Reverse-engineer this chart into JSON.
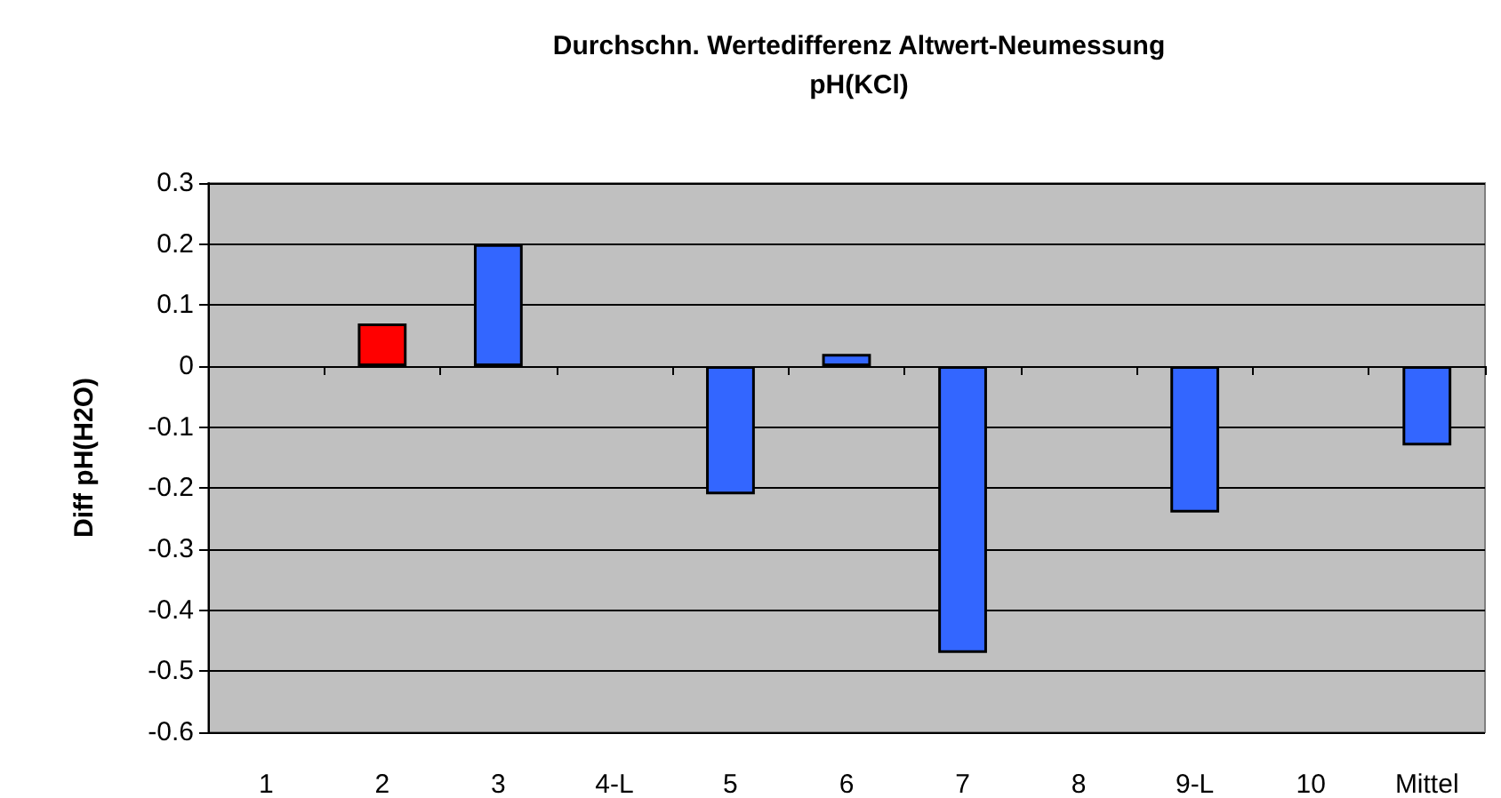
{
  "chart_data": {
    "type": "bar",
    "title": "Durchschn. Wertedifferenz Altwert-Neumessung\npH(KCl)",
    "ylabel": "Diff pH(H2O)",
    "categories": [
      "1",
      "2",
      "3",
      "4-L",
      "5",
      "6",
      "7",
      "8",
      "9-L",
      "10",
      "Mittel"
    ],
    "values": [
      null,
      0.07,
      0.2,
      null,
      -0.21,
      0.02,
      -0.47,
      null,
      -0.24,
      null,
      -0.13
    ],
    "colors": [
      "#3366ff",
      "#ff0000",
      "#3366ff",
      "#3366ff",
      "#3366ff",
      "#3366ff",
      "#3366ff",
      "#3366ff",
      "#3366ff",
      "#3366ff",
      "#3366ff"
    ],
    "ylim": [
      -0.6,
      0.3
    ],
    "yticks": [
      -0.6,
      -0.5,
      -0.4,
      -0.3,
      -0.2,
      -0.1,
      0,
      0.1,
      0.2,
      0.3
    ],
    "grid": "y"
  }
}
